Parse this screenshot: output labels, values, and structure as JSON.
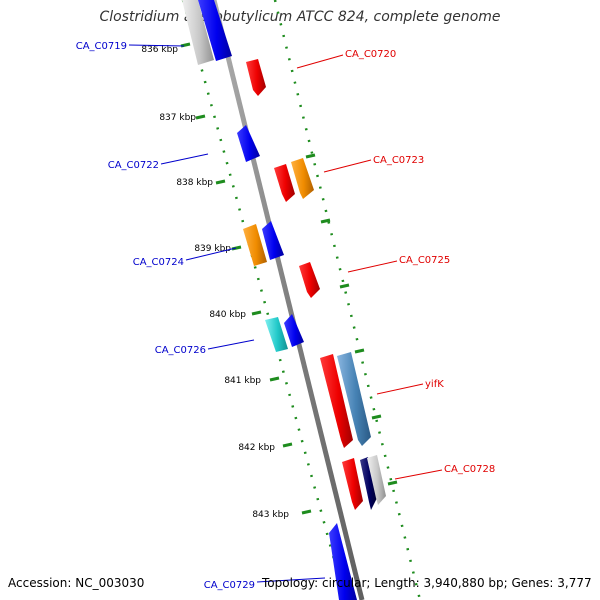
{
  "title": "Clostridium acetobutylicum ATCC 824, complete genome",
  "accession": "Accession: NC_003030",
  "topology": "Topology: circular; Length: 3,940,880 bp; Genes: 3,777",
  "colors": {
    "backbone": "#8a8a8a",
    "ruler": "#1e8c1e",
    "forward_label": "#e00000",
    "reverse_label": "#0000cc"
  },
  "ruler_ticks": [
    "836 kbp",
    "837 kbp",
    "838 kbp",
    "839 kbp",
    "840 kbp",
    "841 kbp",
    "842 kbp",
    "843 kbp"
  ],
  "gene_labels": [
    {
      "text": "CA_C0719",
      "strand": "reverse"
    },
    {
      "text": "CA_C0720",
      "strand": "forward"
    },
    {
      "text": "CA_C0722",
      "strand": "reverse"
    },
    {
      "text": "CA_C0723",
      "strand": "forward"
    },
    {
      "text": "CA_C0724",
      "strand": "reverse"
    },
    {
      "text": "CA_C0725",
      "strand": "forward"
    },
    {
      "text": "CA_C0726",
      "strand": "reverse"
    },
    {
      "text": "yifK",
      "strand": "forward"
    },
    {
      "text": "CA_C0728",
      "strand": "forward"
    },
    {
      "text": "CA_C0729",
      "strand": "reverse"
    }
  ]
}
